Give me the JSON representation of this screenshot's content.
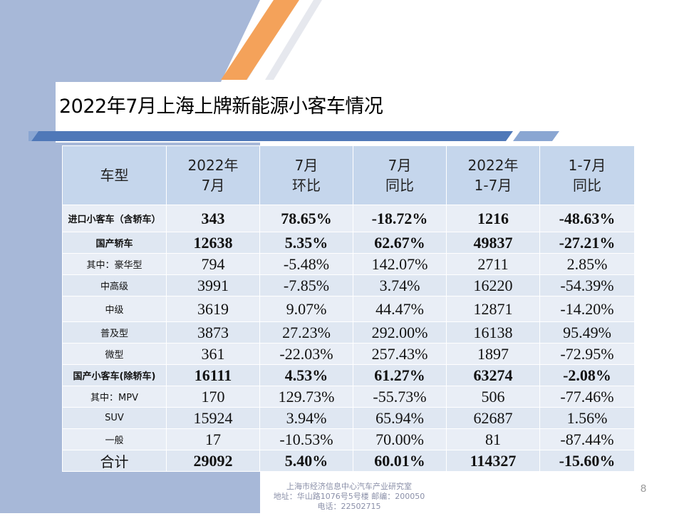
{
  "title": "2022年7月上海上牌新能源小客车情况",
  "table": {
    "headers": [
      {
        "l1": "车型",
        "l2": ""
      },
      {
        "l1": "2022年",
        "l2": "7月"
      },
      {
        "l1": "7月",
        "l2": "环比"
      },
      {
        "l1": "7月",
        "l2": "同比"
      },
      {
        "l1": "2022年",
        "l2": "1-7月"
      },
      {
        "l1": "1-7月",
        "l2": "同比"
      }
    ],
    "rows": [
      {
        "label": "进口小客车（含轿车）",
        "jul": "343",
        "mom": "78.65%",
        "yoy": "-18.72%",
        "ytd": "1216",
        "ytd_yoy": "-48.63%"
      },
      {
        "label": "国产轿车",
        "jul": "12638",
        "mom": "5.35%",
        "yoy": "62.67%",
        "ytd": "49837",
        "ytd_yoy": "-27.21%"
      },
      {
        "label": "其中：豪华型",
        "jul": "794",
        "mom": "-5.48%",
        "yoy": "142.07%",
        "ytd": "2711",
        "ytd_yoy": "2.85%"
      },
      {
        "label": "中高级",
        "jul": "3991",
        "mom": "-7.85%",
        "yoy": "3.74%",
        "ytd": "16220",
        "ytd_yoy": "-54.39%"
      },
      {
        "label": "中级",
        "jul": "3619",
        "mom": "9.07%",
        "yoy": "44.47%",
        "ytd": "12871",
        "ytd_yoy": "-14.20%"
      },
      {
        "label": "普及型",
        "jul": "3873",
        "mom": "27.23%",
        "yoy": "292.00%",
        "ytd": "16138",
        "ytd_yoy": "95.49%"
      },
      {
        "label": "微型",
        "jul": "361",
        "mom": "-22.03%",
        "yoy": "257.43%",
        "ytd": "1897",
        "ytd_yoy": "-72.95%"
      },
      {
        "label": "国产小客车(除轿车)",
        "jul": "16111",
        "mom": "4.53%",
        "yoy": "61.27%",
        "ytd": "63274",
        "ytd_yoy": "-2.08%"
      },
      {
        "label": "其中：MPV",
        "jul": "170",
        "mom": "129.73%",
        "yoy": "-55.73%",
        "ytd": "506",
        "ytd_yoy": "-77.46%"
      },
      {
        "label": "SUV",
        "jul": "15924",
        "mom": "3.94%",
        "yoy": "65.94%",
        "ytd": "62687",
        "ytd_yoy": "1.56%"
      },
      {
        "label": "一般",
        "jul": "17",
        "mom": "-10.53%",
        "yoy": "70.00%",
        "ytd": "81",
        "ytd_yoy": "-87.44%"
      },
      {
        "label": "合计",
        "jul": "29092",
        "mom": "5.40%",
        "yoy": "60.01%",
        "ytd": "114327",
        "ytd_yoy": "-15.60%"
      }
    ]
  },
  "footer": {
    "line1": "上海市经济信息中心汽车产业研究室",
    "line2": "地址：华山路1076号5号楼    邮编：200050",
    "line3": "电话：22502715"
  },
  "page_number": "8",
  "colors": {
    "left_panel": "#a7b8d8",
    "stripe_orange": "#f4a25a",
    "header_fill": "#c5d6ec",
    "row_fill": "#e9eef6",
    "title_bar": "#4f78b8"
  }
}
